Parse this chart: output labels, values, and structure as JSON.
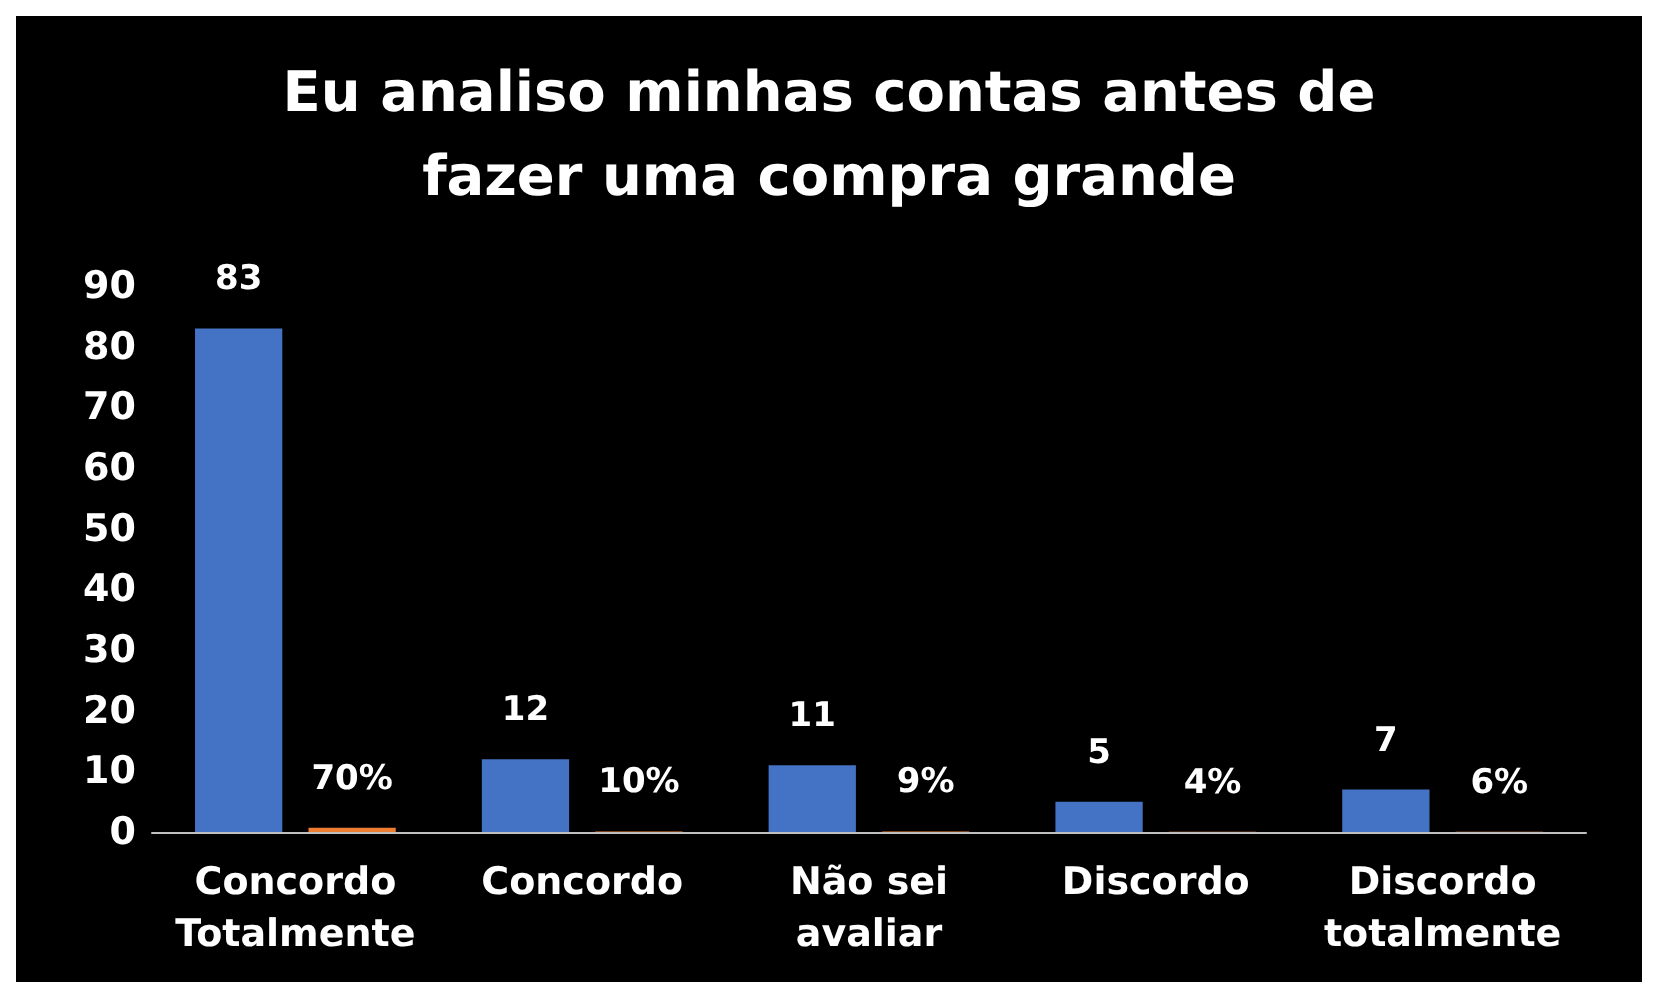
{
  "chart_data": {
    "type": "bar",
    "title": "Eu analiso minhas contas antes de\nfazer uma compra grande",
    "categories": [
      "Concordo\nTotalmente",
      "Concordo",
      "Não sei\navaliar",
      "Discordo",
      "Discordo\ntotalmente"
    ],
    "series": [
      {
        "color": "#4472c4",
        "values": [
          83,
          12,
          11,
          5,
          7
        ],
        "value_labels": [
          "83",
          "12",
          "11",
          "5",
          "7"
        ]
      },
      {
        "color": "#ed7d31",
        "values": [
          0.7,
          0.1,
          0.09,
          0.04,
          0.06
        ],
        "value_labels": [
          "70%",
          "10%",
          "9%",
          "4%",
          "6%"
        ]
      }
    ],
    "ylim": [
      0,
      90
    ],
    "yticks": [
      0,
      10,
      20,
      30,
      40,
      50,
      60,
      70,
      80,
      90
    ],
    "grid": false
  }
}
